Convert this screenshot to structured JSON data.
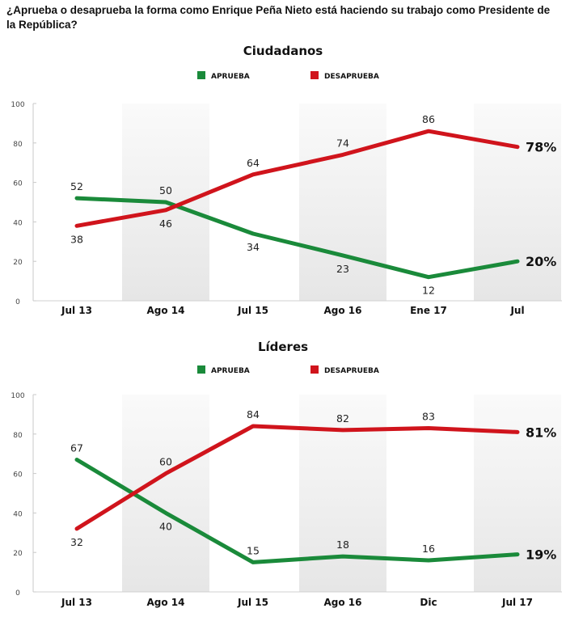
{
  "question": "¿Aprueba o desaprueba la forma como Enrique Peña Nieto está haciendo su trabajo como Presidente de la República?",
  "colors": {
    "aprueba": "#1a8a3a",
    "desaprueba": "#d0141c",
    "band": "#ececec"
  },
  "chart_data": [
    {
      "type": "line",
      "title": "Ciudadanos",
      "categories": [
        "Jul 13",
        "Ago 14",
        "Jul 15",
        "Ago 16",
        "Ene 17",
        "Jul"
      ],
      "yticks": [
        "0",
        "20",
        "40",
        "60",
        "80",
        "100"
      ],
      "ylim": [
        0,
        100
      ],
      "legend": [
        "APRUEBA",
        "DESAPRUEBA"
      ],
      "legend_position": "top-center",
      "series": [
        {
          "name": "APRUEBA",
          "key": "aprueba",
          "values": [
            52,
            50,
            34,
            23,
            12,
            20
          ],
          "labels": [
            "52",
            "50",
            "34",
            "23",
            "12",
            "20%"
          ],
          "label_pos": [
            "above",
            "above",
            "below",
            "below",
            "below",
            "right"
          ]
        },
        {
          "name": "DESAPRUEBA",
          "key": "desaprueba",
          "values": [
            38,
            46,
            64,
            74,
            86,
            78
          ],
          "labels": [
            "38",
            "46",
            "64",
            "74",
            "86",
            "78%"
          ],
          "label_pos": [
            "below",
            "below",
            "above",
            "above",
            "above",
            "right"
          ]
        }
      ]
    },
    {
      "type": "line",
      "title": "Líderes",
      "categories": [
        "Jul 13",
        "Ago 14",
        "Jul 15",
        "Ago 16",
        "Dic",
        "Jul 17"
      ],
      "yticks": [
        "0",
        "20",
        "40",
        "60",
        "80",
        "100"
      ],
      "ylim": [
        0,
        100
      ],
      "legend": [
        "APRUEBA",
        "DESAPRUEBA"
      ],
      "legend_position": "top-center",
      "series": [
        {
          "name": "APRUEBA",
          "key": "aprueba",
          "values": [
            67,
            40,
            15,
            18,
            16,
            19
          ],
          "labels": [
            "67",
            "40",
            "15",
            "18",
            "16",
            "19%"
          ],
          "label_pos": [
            "above",
            "below",
            "above",
            "above",
            "above",
            "right"
          ]
        },
        {
          "name": "DESAPRUEBA",
          "key": "desaprueba",
          "values": [
            32,
            60,
            84,
            82,
            83,
            81
          ],
          "labels": [
            "32",
            "60",
            "84",
            "82",
            "83",
            "81%"
          ],
          "label_pos": [
            "below",
            "above",
            "above",
            "above",
            "above",
            "right"
          ]
        }
      ]
    }
  ]
}
